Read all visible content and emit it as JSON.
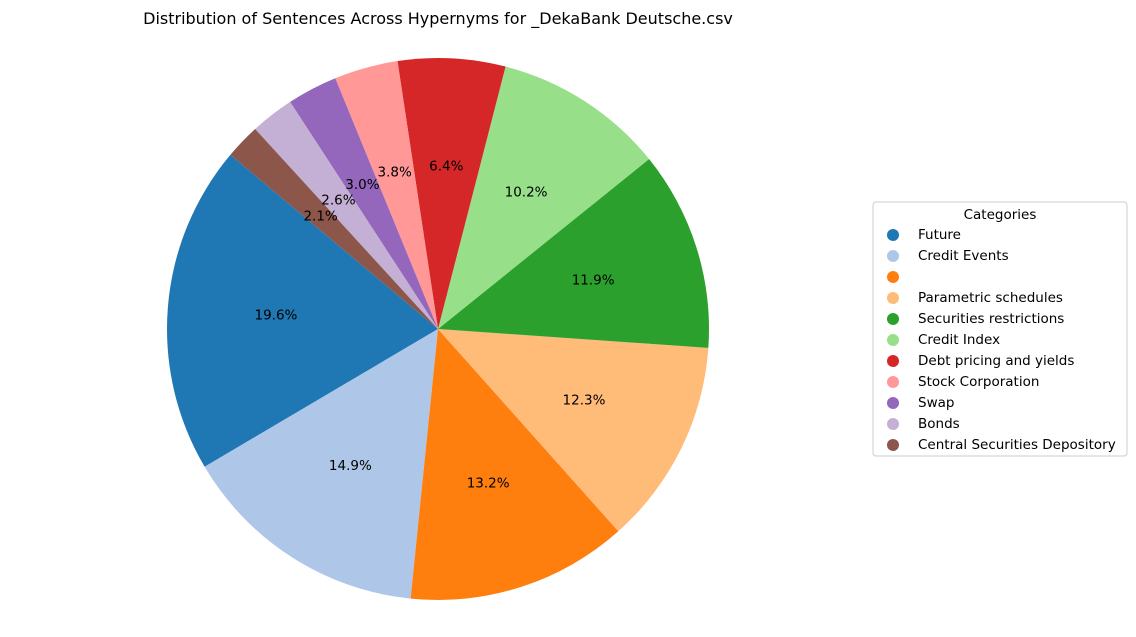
{
  "chart_data": {
    "type": "pie",
    "title": "Distribution of Sentences Across Hypernyms for _DekaBank Deutsche.csv",
    "legend_title": "Categories",
    "legend_position": "right",
    "start_angle_deg": 140,
    "direction": "counterclockwise",
    "slices": [
      {
        "label": "Future",
        "value": 19.6,
        "pct_label": "19.6%",
        "color": "#1f77b4"
      },
      {
        "label": "Credit Events",
        "value": 14.9,
        "pct_label": "14.9%",
        "color": "#aec7e8"
      },
      {
        "label": "",
        "value": 13.2,
        "pct_label": "13.2%",
        "color": "#ff7f0e"
      },
      {
        "label": "Parametric schedules",
        "value": 12.3,
        "pct_label": "12.3%",
        "color": "#ffbb78"
      },
      {
        "label": "Securities restrictions",
        "value": 11.9,
        "pct_label": "11.9%",
        "color": "#2ca02c"
      },
      {
        "label": "Credit Index",
        "value": 10.2,
        "pct_label": "10.2%",
        "color": "#98df8a"
      },
      {
        "label": "Debt pricing and yields",
        "value": 6.4,
        "pct_label": "6.4%",
        "color": "#d62728"
      },
      {
        "label": "Stock Corporation",
        "value": 3.8,
        "pct_label": "3.8%",
        "color": "#ff9896"
      },
      {
        "label": "Swap",
        "value": 3.0,
        "pct_label": "3.0%",
        "color": "#9467bd"
      },
      {
        "label": "Bonds",
        "value": 2.6,
        "pct_label": "2.6%",
        "color": "#c5b0d5"
      },
      {
        "label": "Central Securities Depository",
        "value": 2.1,
        "pct_label": "2.1%",
        "color": "#8c564b"
      }
    ]
  }
}
